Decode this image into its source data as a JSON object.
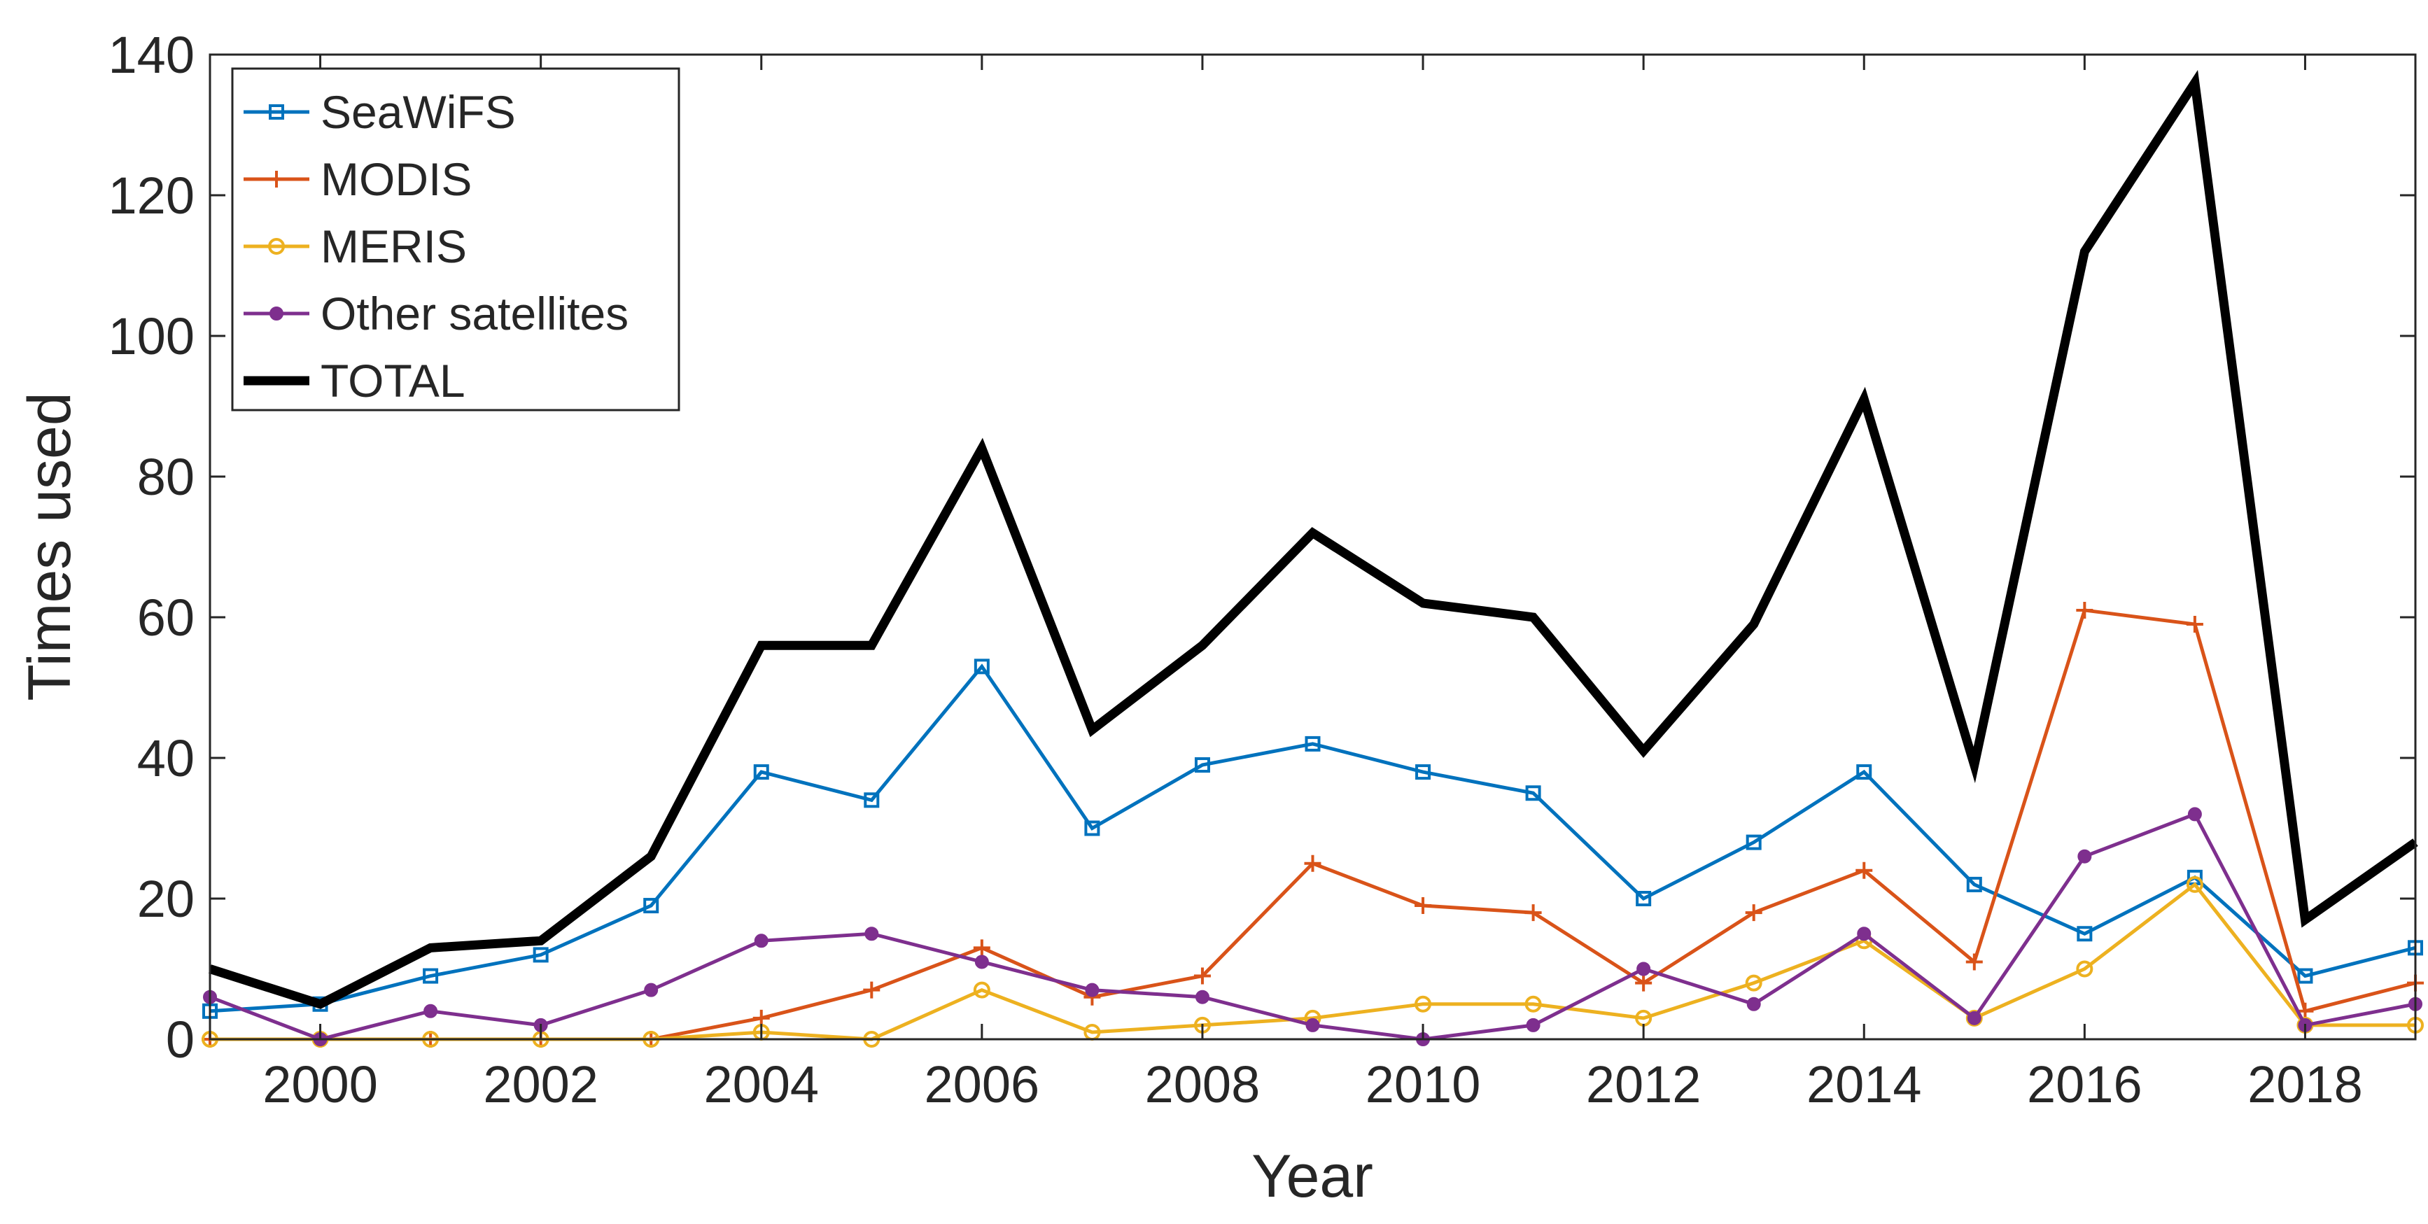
{
  "chart_data": {
    "type": "line",
    "title": "",
    "xlabel": "Year",
    "ylabel": "Times used",
    "xlim": [
      1999,
      2019
    ],
    "ylim": [
      0,
      140
    ],
    "xticks": [
      2000,
      2002,
      2004,
      2006,
      2008,
      2010,
      2012,
      2014,
      2016,
      2018
    ],
    "yticks": [
      0,
      20,
      40,
      60,
      80,
      100,
      120,
      140
    ],
    "grid": false,
    "legend_position": "top-left",
    "x": [
      1999,
      2000,
      2001,
      2002,
      2003,
      2004,
      2005,
      2006,
      2007,
      2008,
      2009,
      2010,
      2011,
      2012,
      2013,
      2014,
      2015,
      2016,
      2017,
      2018,
      2019
    ],
    "series": [
      {
        "name": "SeaWiFS",
        "color": "#0072BD",
        "marker": "square",
        "values": [
          4,
          5,
          9,
          12,
          19,
          38,
          34,
          53,
          30,
          39,
          42,
          38,
          35,
          20,
          28,
          38,
          22,
          15,
          23,
          9,
          13
        ]
      },
      {
        "name": "MODIS",
        "color": "#D95319",
        "marker": "plus",
        "values": [
          0,
          0,
          0,
          0,
          0,
          3,
          7,
          13,
          6,
          9,
          25,
          19,
          18,
          8,
          18,
          24,
          11,
          61,
          59,
          4,
          8
        ]
      },
      {
        "name": "MERIS",
        "color": "#EDB120",
        "marker": "circle",
        "values": [
          0,
          0,
          0,
          0,
          0,
          1,
          0,
          7,
          1,
          2,
          3,
          5,
          5,
          3,
          8,
          14,
          3,
          10,
          22,
          2,
          2
        ]
      },
      {
        "name": "Other satellites",
        "color": "#7E2F8E",
        "marker": "dot",
        "values": [
          6,
          0,
          4,
          2,
          7,
          14,
          15,
          11,
          7,
          6,
          2,
          0,
          2,
          10,
          5,
          15,
          3,
          26,
          32,
          2,
          5
        ]
      },
      {
        "name": "TOTAL",
        "color": "#000000",
        "marker": "none",
        "values": [
          10,
          5,
          13,
          14,
          26,
          56,
          56,
          84,
          44,
          56,
          72,
          62,
          60,
          41,
          59,
          91,
          39,
          112,
          136,
          17,
          28
        ]
      }
    ]
  }
}
